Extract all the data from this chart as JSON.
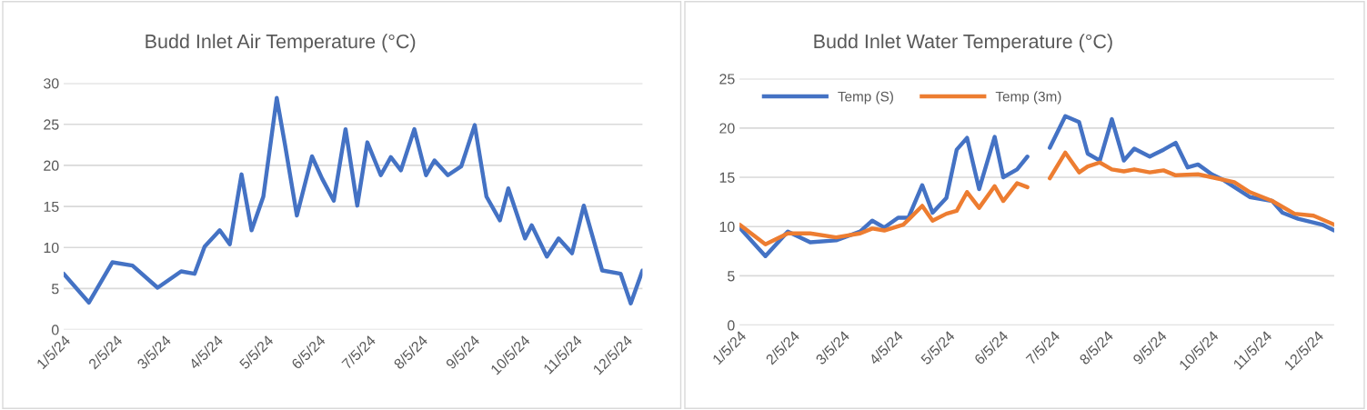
{
  "chart_data": [
    {
      "type": "line",
      "title": "Budd Inlet Air Temperature (°C)",
      "x": [
        "2024-01-05",
        "2024-01-20",
        "2024-02-03",
        "2024-02-15",
        "2024-03-01",
        "2024-03-15",
        "2024-03-23",
        "2024-03-29",
        "2024-04-07",
        "2024-04-13",
        "2024-04-20",
        "2024-04-26",
        "2024-05-03",
        "2024-05-11",
        "2024-05-16",
        "2024-05-23",
        "2024-06-01",
        "2024-06-07",
        "2024-06-14",
        "2024-06-21",
        "2024-06-28",
        "2024-07-04",
        "2024-07-12",
        "2024-07-18",
        "2024-07-24",
        "2024-08-01",
        "2024-08-08",
        "2024-08-13",
        "2024-08-21",
        "2024-08-29",
        "2024-09-06",
        "2024-09-13",
        "2024-09-21",
        "2024-09-26",
        "2024-10-06",
        "2024-10-10",
        "2024-10-19",
        "2024-10-26",
        "2024-11-03",
        "2024-11-10",
        "2024-11-21",
        "2024-12-02",
        "2024-12-08",
        "2024-12-15"
      ],
      "series": [
        {
          "color": "#4472c4",
          "values": [
            6.8,
            3.3,
            8.2,
            7.8,
            5.1,
            7.1,
            6.8,
            10.1,
            12.1,
            10.4,
            18.9,
            12.1,
            16.2,
            28.2,
            22.4,
            13.9,
            21.1,
            18.4,
            15.7,
            24.4,
            15.1,
            22.8,
            18.8,
            21.0,
            19.4,
            24.4,
            18.8,
            20.6,
            18.8,
            19.9,
            24.9,
            16.2,
            13.3,
            17.2,
            11.1,
            12.7,
            8.9,
            11.1,
            9.3,
            15.1,
            7.2,
            6.8,
            3.2,
            7.2
          ]
        }
      ],
      "xlim": [
        "2024-01-05",
        "2024-12-15"
      ],
      "xticks": [
        {
          "value": "2024-01-05",
          "label": "1/5/24"
        },
        {
          "value": "2024-02-05",
          "label": "2/5/24"
        },
        {
          "value": "2024-03-05",
          "label": "3/5/24"
        },
        {
          "value": "2024-04-05",
          "label": "4/5/24"
        },
        {
          "value": "2024-05-05",
          "label": "5/5/24"
        },
        {
          "value": "2024-06-05",
          "label": "6/5/24"
        },
        {
          "value": "2024-07-05",
          "label": "7/5/24"
        },
        {
          "value": "2024-08-05",
          "label": "8/5/24"
        },
        {
          "value": "2024-09-05",
          "label": "9/5/24"
        },
        {
          "value": "2024-10-05",
          "label": "10/5/24"
        },
        {
          "value": "2024-11-05",
          "label": "11/5/24"
        },
        {
          "value": "2024-12-05",
          "label": "12/5/24"
        }
      ],
      "ylim": [
        0,
        30
      ],
      "yticks": [
        0,
        5,
        10,
        15,
        20,
        25,
        30
      ],
      "grid": "y",
      "legend": false,
      "marker": "none",
      "line_style": "solid"
    },
    {
      "type": "line",
      "title": "Budd Inlet Water Temperature (°C)",
      "series": [
        {
          "name": "Temp (S)",
          "color": "#4472c4",
          "x": [
            "2024-01-05",
            "2024-01-20",
            "2024-02-02",
            "2024-02-15",
            "2024-03-01",
            "2024-03-15",
            "2024-03-22",
            "2024-03-29",
            "2024-04-06",
            "2024-04-12",
            "2024-04-20",
            "2024-04-26",
            "2024-05-04",
            "2024-05-10",
            "2024-05-16",
            "2024-05-23",
            "2024-06-01",
            "2024-06-06",
            "2024-06-14",
            "2024-06-20",
            "2024-06-27",
            "2024-07-03",
            "2024-07-12",
            "2024-07-20",
            "2024-07-25",
            "2024-08-01",
            "2024-08-08",
            "2024-08-15",
            "2024-08-21",
            "2024-08-30",
            "2024-09-07",
            "2024-09-14",
            "2024-09-21",
            "2024-09-27",
            "2024-10-05",
            "2024-10-12",
            "2024-10-20",
            "2024-10-27",
            "2024-11-09",
            "2024-11-15",
            "2024-11-24",
            "2024-12-08",
            "2024-12-15"
          ],
          "values": [
            9.9,
            7.0,
            9.5,
            8.4,
            8.6,
            9.5,
            10.6,
            9.9,
            10.9,
            10.9,
            14.2,
            11.4,
            12.9,
            17.8,
            19.0,
            13.8,
            19.1,
            15.0,
            15.8,
            17.1,
            null,
            18.0,
            21.2,
            20.6,
            17.4,
            16.7,
            20.9,
            16.7,
            17.9,
            17.1,
            17.8,
            18.5,
            16.0,
            16.3,
            15.3,
            14.7,
            13.8,
            13.0,
            12.6,
            11.4,
            10.8,
            10.2,
            9.6
          ]
        },
        {
          "name": "Temp (3m)",
          "color": "#ed7d31",
          "x": [
            "2024-01-05",
            "2024-01-20",
            "2024-02-02",
            "2024-02-15",
            "2024-03-01",
            "2024-03-15",
            "2024-03-22",
            "2024-03-29",
            "2024-04-09",
            "2024-04-12",
            "2024-04-20",
            "2024-04-26",
            "2024-05-04",
            "2024-05-10",
            "2024-05-16",
            "2024-05-23",
            "2024-06-01",
            "2024-06-06",
            "2024-06-14",
            "2024-06-20",
            "2024-06-27",
            "2024-07-03",
            "2024-07-12",
            "2024-07-20",
            "2024-07-25",
            "2024-08-01",
            "2024-08-08",
            "2024-08-15",
            "2024-08-21",
            "2024-08-30",
            "2024-09-07",
            "2024-09-14",
            "2024-09-27",
            "2024-10-05",
            "2024-10-18",
            "2024-10-27",
            "2024-11-09",
            "2024-11-22",
            "2024-12-03",
            "2024-12-15"
          ],
          "values": [
            10.2,
            8.2,
            9.3,
            9.3,
            8.9,
            9.3,
            9.8,
            9.6,
            10.2,
            10.7,
            12.1,
            10.6,
            11.3,
            11.6,
            13.5,
            11.9,
            14.1,
            12.6,
            14.4,
            14.0,
            null,
            14.9,
            17.5,
            15.5,
            16.1,
            16.5,
            15.8,
            15.6,
            15.8,
            15.5,
            15.7,
            15.2,
            15.3,
            15.0,
            14.5,
            13.5,
            12.6,
            11.3,
            11.1,
            10.2
          ]
        }
      ],
      "xlim": [
        "2024-01-05",
        "2024-12-15"
      ],
      "xticks": [
        {
          "value": "2024-01-05",
          "label": "1/5/24"
        },
        {
          "value": "2024-02-05",
          "label": "2/5/24"
        },
        {
          "value": "2024-03-05",
          "label": "3/5/24"
        },
        {
          "value": "2024-04-05",
          "label": "4/5/24"
        },
        {
          "value": "2024-05-05",
          "label": "5/5/24"
        },
        {
          "value": "2024-06-05",
          "label": "6/5/24"
        },
        {
          "value": "2024-07-05",
          "label": "7/5/24"
        },
        {
          "value": "2024-08-05",
          "label": "8/5/24"
        },
        {
          "value": "2024-09-05",
          "label": "9/5/24"
        },
        {
          "value": "2024-10-05",
          "label": "10/5/24"
        },
        {
          "value": "2024-11-05",
          "label": "11/5/24"
        },
        {
          "value": "2024-12-05",
          "label": "12/5/24"
        }
      ],
      "ylim": [
        0,
        25
      ],
      "yticks": [
        0,
        5,
        10,
        15,
        20,
        25
      ],
      "grid": "y",
      "legend": "top left",
      "marker": "none",
      "line_style": "solid"
    }
  ]
}
